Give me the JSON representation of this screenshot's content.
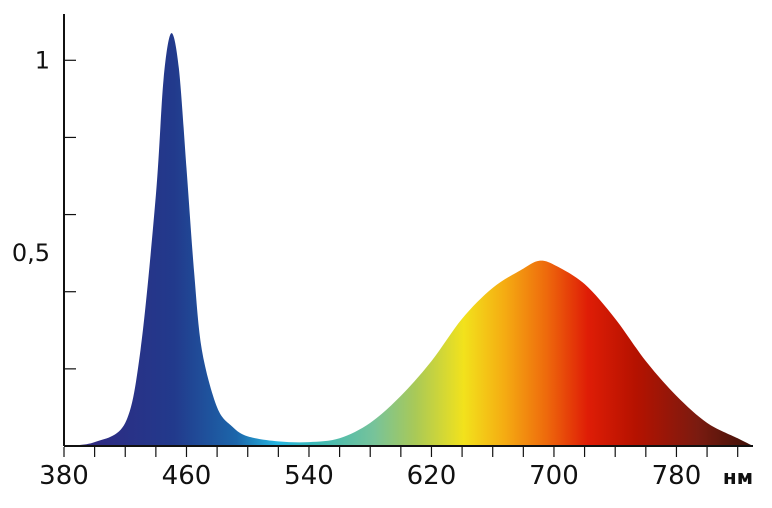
{
  "chart_data": {
    "type": "area",
    "title": "",
    "xlabel": "нм",
    "ylabel": "",
    "xlim": [
      380,
      830
    ],
    "ylim": [
      0,
      1.12
    ],
    "x_ticks": [
      380,
      400,
      420,
      440,
      460,
      480,
      500,
      520,
      540,
      560,
      580,
      600,
      620,
      640,
      660,
      680,
      700,
      720,
      740,
      760,
      780,
      800,
      820
    ],
    "x_tick_labels": [
      {
        "value": 380,
        "label": "380"
      },
      {
        "value": 460,
        "label": "460"
      },
      {
        "value": 540,
        "label": "540"
      },
      {
        "value": 620,
        "label": "620"
      },
      {
        "value": 700,
        "label": "700"
      },
      {
        "value": 780,
        "label": "780"
      }
    ],
    "y_ticks": [
      0.2,
      0.4,
      0.6,
      0.8,
      1.0
    ],
    "y_tick_labels": [
      {
        "value": 1.0,
        "label": "1"
      },
      {
        "value": 0.5,
        "label": "0,5"
      }
    ],
    "grid": false,
    "series": [
      {
        "x": [
          380,
          400,
          420,
          430,
          440,
          445,
          450,
          455,
          460,
          465,
          470,
          480,
          490,
          500,
          520,
          540,
          560,
          580,
          600,
          620,
          640,
          660,
          680,
          690,
          700,
          720,
          740,
          760,
          780,
          800,
          820,
          830
        ],
        "y": [
          0.0,
          0.01,
          0.06,
          0.25,
          0.65,
          0.95,
          1.07,
          0.98,
          0.72,
          0.45,
          0.25,
          0.1,
          0.05,
          0.025,
          0.012,
          0.01,
          0.02,
          0.06,
          0.13,
          0.22,
          0.33,
          0.41,
          0.46,
          0.48,
          0.47,
          0.42,
          0.33,
          0.22,
          0.13,
          0.06,
          0.02,
          0.0
        ]
      }
    ],
    "spectrum_colors": [
      {
        "offset": 0.0,
        "color": "#3a2a7a"
      },
      {
        "offset": 0.06,
        "color": "#2c2d84"
      },
      {
        "offset": 0.16,
        "color": "#223a8c"
      },
      {
        "offset": 0.25,
        "color": "#1c66aa"
      },
      {
        "offset": 0.31,
        "color": "#27b6e0"
      },
      {
        "offset": 0.37,
        "color": "#3fb9b3"
      },
      {
        "offset": 0.45,
        "color": "#77c39a"
      },
      {
        "offset": 0.51,
        "color": "#a9c957"
      },
      {
        "offset": 0.58,
        "color": "#f2e21c"
      },
      {
        "offset": 0.64,
        "color": "#f5ab12"
      },
      {
        "offset": 0.7,
        "color": "#ee6a0c"
      },
      {
        "offset": 0.76,
        "color": "#df1d06"
      },
      {
        "offset": 0.83,
        "color": "#b51200"
      },
      {
        "offset": 0.92,
        "color": "#7a1b10"
      },
      {
        "offset": 1.0,
        "color": "#3e1108"
      }
    ]
  }
}
